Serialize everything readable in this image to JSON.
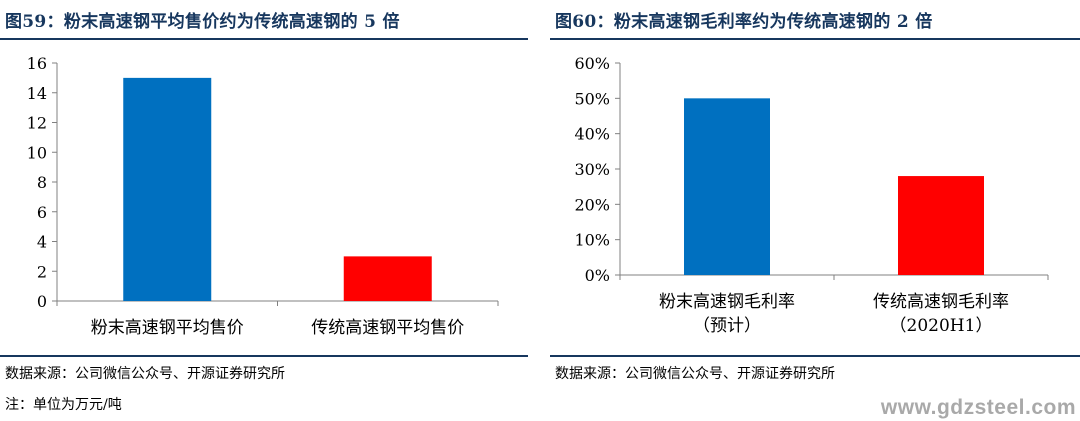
{
  "left_panel": {
    "title": "图59：粉末高速钢平均售价约为传统高速钢的 5 倍",
    "source": "数据来源：公司微信公众号、开源证券研究所",
    "note": "注：单位为万元/吨"
  },
  "right_panel": {
    "title": "图60：粉末高速钢毛利率约为传统高速钢的 2 倍",
    "source": "数据来源：公司微信公众号、开源证券研究所"
  },
  "watermark": "www.gdzsteel.com",
  "chart_data": [
    {
      "type": "bar",
      "title": "图59：粉末高速钢平均售价约为传统高速钢的 5 倍",
      "categories": [
        [
          "粉末高速钢平均售价"
        ],
        [
          "传统高速钢平均售价"
        ]
      ],
      "values": [
        15,
        3
      ],
      "colors": [
        "#0070c0",
        "#ff0000"
      ],
      "yticks": [
        "0",
        "2",
        "4",
        "6",
        "8",
        "10",
        "12",
        "14",
        "16"
      ],
      "ylim": [
        0,
        16
      ],
      "grid": false,
      "legend": "none"
    },
    {
      "type": "bar",
      "title": "图60：粉末高速钢毛利率约为传统高速钢的 2 倍",
      "categories": [
        [
          "粉末高速钢毛利率",
          "（预计）"
        ],
        [
          "传统高速钢毛利率",
          "（2020H1）"
        ]
      ],
      "values": [
        50,
        28
      ],
      "colors": [
        "#0070c0",
        "#ff0000"
      ],
      "yticks": [
        "0%",
        "10%",
        "20%",
        "30%",
        "40%",
        "50%",
        "60%"
      ],
      "ylim": [
        0,
        60
      ],
      "grid": false,
      "legend": "none"
    }
  ]
}
